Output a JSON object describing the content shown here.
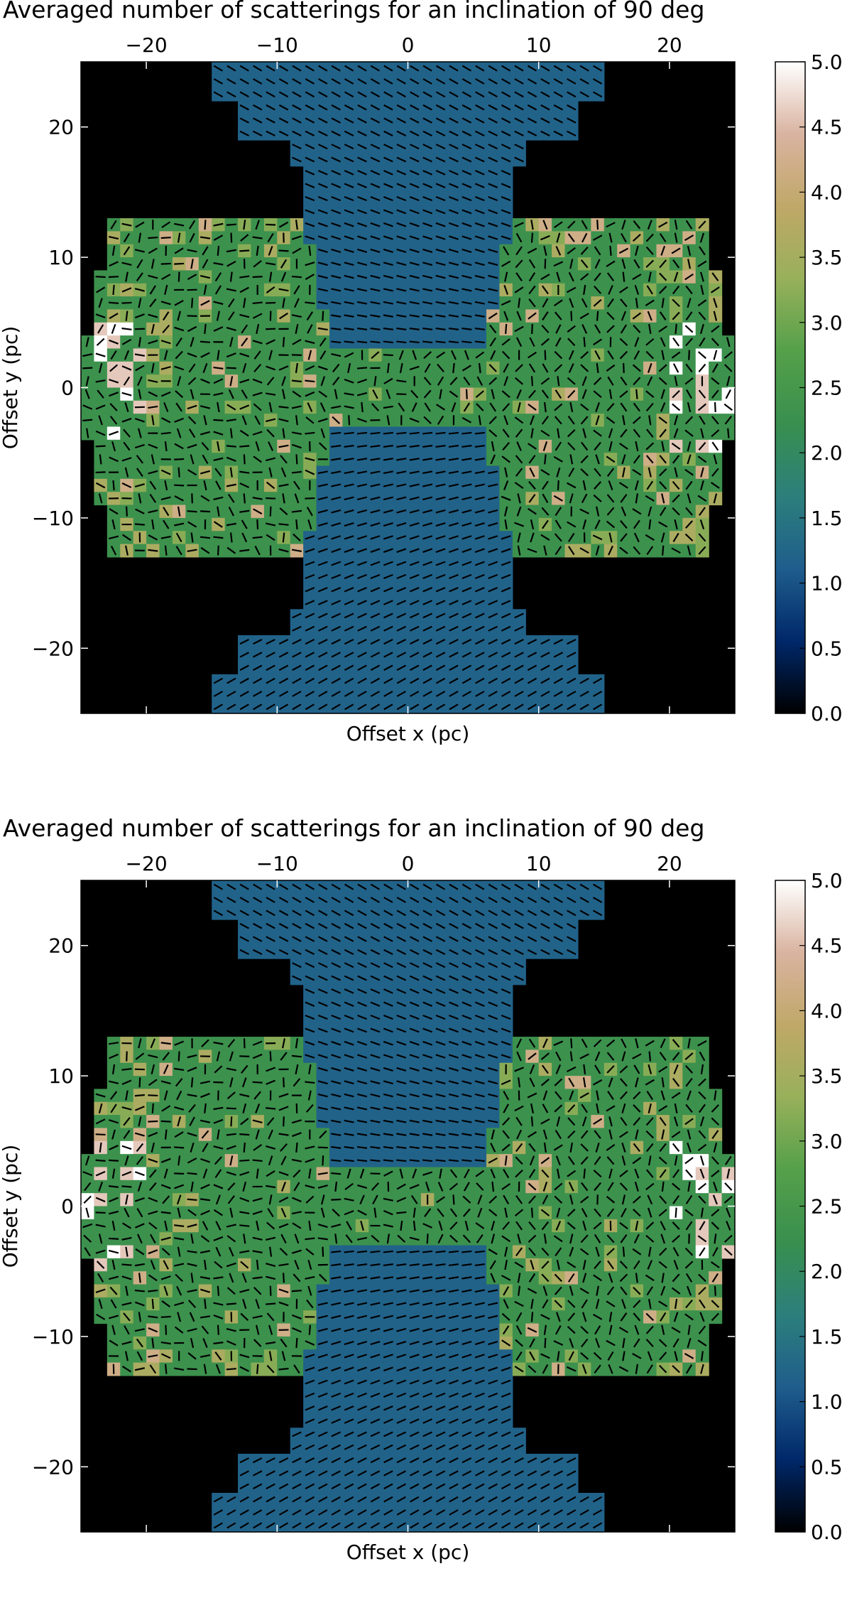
{
  "chart_data": [
    {
      "type": "heatmap",
      "title": "Averaged number of scatterings for an inclination of 90 deg",
      "xlabel": "Offset x (pc)",
      "ylabel": "Offset y (pc)",
      "xlim": [
        -25,
        25
      ],
      "ylim": [
        -25,
        25
      ],
      "xticks": [
        -20,
        -10,
        0,
        10,
        20
      ],
      "yticks": [
        20,
        10,
        0,
        -10,
        -20
      ],
      "colorbar": {
        "min": 0.0,
        "max": 5.0,
        "ticks": [
          "0.0",
          "0.5",
          "1.0",
          "1.5",
          "2.0",
          "2.5",
          "3.0",
          "3.5",
          "4.0",
          "4.5",
          "5.0"
        ],
        "colormap": "gist_earth"
      },
      "regions": {
        "polar_cone_value": 1.2,
        "torus_value": 2.3,
        "torus_half_height_pc": 13,
        "torus_outer_radius_pc": 22.5,
        "hotspot_values": [
          3.2,
          3.6,
          4.2,
          4.6,
          5.0
        ]
      },
      "overlay": "polarization vectors (black bars)"
    },
    {
      "type": "heatmap",
      "title": "Averaged number of scatterings for an inclination of 90 deg",
      "xlabel": "Offset x (pc)",
      "ylabel": "Offset y (pc)",
      "xlim": [
        -25,
        25
      ],
      "ylim": [
        -25,
        25
      ],
      "xticks": [
        -20,
        -10,
        0,
        10,
        20
      ],
      "yticks": [
        20,
        10,
        0,
        -10,
        -20
      ],
      "colorbar": {
        "min": 0.0,
        "max": 5.0,
        "ticks": [
          "0.0",
          "0.5",
          "1.0",
          "1.5",
          "2.0",
          "2.5",
          "3.0",
          "3.5",
          "4.0",
          "4.5",
          "5.0"
        ],
        "colormap": "gist_earth"
      },
      "regions": {
        "polar_cone_value": 1.2,
        "torus_value": 2.3,
        "torus_half_height_pc": 13,
        "torus_outer_radius_pc": 22.5,
        "hotspot_values": [
          3.2,
          3.6,
          4.2,
          4.6,
          5.0
        ]
      },
      "overlay": "polarization vectors (black bars)"
    }
  ],
  "colors": {
    "background_outside": "#000000",
    "cone": "#2a6b86",
    "torus": "#3e8a4e",
    "cbar_stops": [
      "#000000",
      "#00286a",
      "#1f5d8c",
      "#2c7f7c",
      "#388f4e",
      "#55a04a",
      "#98b05a",
      "#c0a868",
      "#d9b3a0",
      "#ffffff"
    ]
  }
}
